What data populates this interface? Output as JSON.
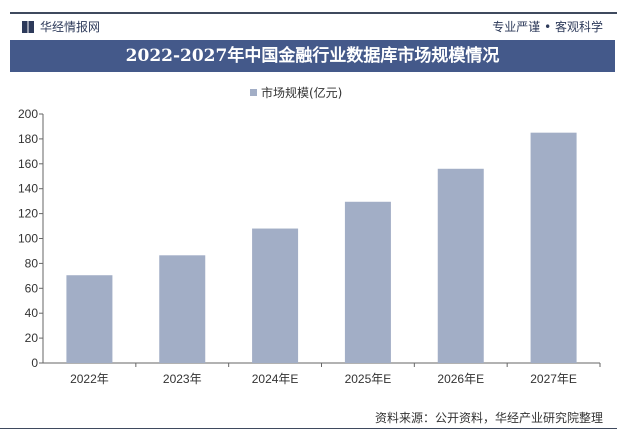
{
  "header": {
    "brand": "华经情报网",
    "slogan": "专业严谨 • 客观科学"
  },
  "footer": {
    "source": "资料来源：公开资料，华经产业研究院整理"
  },
  "chart_data": {
    "type": "bar",
    "title": "2022-2027年中国金融行业数据库市场规模情况",
    "categories": [
      "2022年",
      "2023年",
      "2024年E",
      "2025年E",
      "2026年E",
      "2027年E"
    ],
    "series": [
      {
        "name": "市场规模(亿元)",
        "values": [
          70.5,
          86.5,
          108,
          129.5,
          156,
          185
        ],
        "color": "#a2aec6"
      }
    ],
    "ylim": [
      0,
      200
    ],
    "yticks": [
      0,
      20,
      40,
      60,
      80,
      100,
      120,
      140,
      160,
      180,
      200
    ],
    "grid": false,
    "legend": "top-center"
  }
}
